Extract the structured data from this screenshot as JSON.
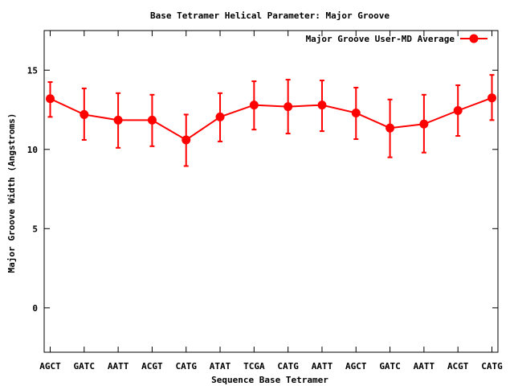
{
  "chart_data": {
    "type": "line",
    "title": "Base Tetramer Helical Parameter: Major Groove",
    "xlabel": "Sequence Base Tetramer",
    "ylabel": "Major Groove Width (Angstroms)",
    "ylim": [
      -2.8,
      17.5
    ],
    "yticks": [
      0,
      5,
      10,
      15
    ],
    "categories": [
      "AGCT",
      "GATC",
      "AATT",
      "ACGT",
      "CATG",
      "ATAT",
      "TCGA",
      "CATG",
      "AATT",
      "AGCT",
      "GATC",
      "AATT",
      "ACGT",
      "CATG"
    ],
    "legend_position": "top-right",
    "grid": false,
    "series": [
      {
        "name": "Major Groove User-MD Average",
        "color": "#ff0000",
        "values": [
          13.2,
          12.2,
          11.85,
          11.85,
          10.6,
          12.05,
          12.8,
          12.7,
          12.8,
          12.3,
          11.35,
          11.6,
          12.45,
          13.25
        ],
        "err_low": [
          12.05,
          10.6,
          10.1,
          10.2,
          8.95,
          10.5,
          11.25,
          11.0,
          11.15,
          10.65,
          9.5,
          9.8,
          10.85,
          11.85
        ],
        "err_high": [
          14.25,
          13.85,
          13.55,
          13.45,
          12.2,
          13.55,
          14.3,
          14.4,
          14.35,
          13.9,
          13.15,
          13.45,
          14.05,
          14.7
        ]
      }
    ]
  }
}
